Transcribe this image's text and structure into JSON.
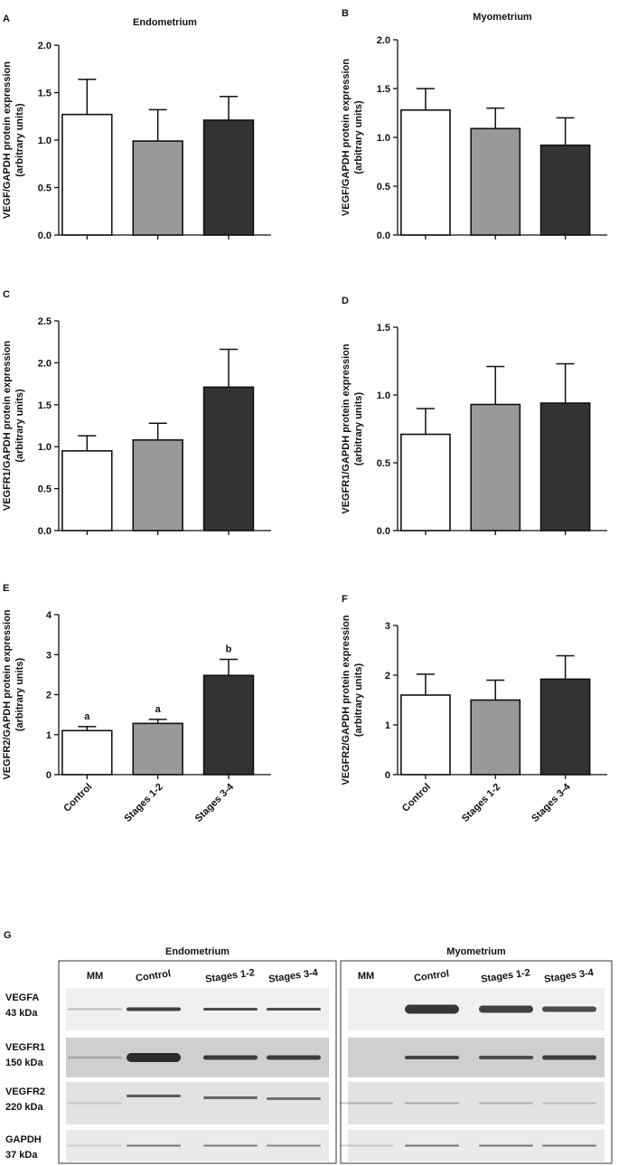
{
  "chart_data": [
    {
      "type": "bar",
      "panel": "A",
      "title": "Endometrium",
      "ylabel": [
        "VEGF/GAPDH protein expression",
        "(arbitrary units)"
      ],
      "categories": [
        null,
        null,
        null
      ],
      "values": [
        1.27,
        0.99,
        1.21
      ],
      "errors": [
        0.37,
        0.33,
        0.25
      ],
      "colors": [
        "#ffffff",
        "#999999",
        "#333333"
      ],
      "ylim": [
        0,
        2
      ],
      "yticks": [
        {
          "value": 0,
          "label": "0.0"
        },
        0.5,
        {
          "value": 1,
          "label": "1.0"
        },
        1.5,
        {
          "value": 2,
          "label": "2.0"
        }
      ]
    },
    {
      "type": "bar",
      "panel": "B",
      "title": "Myometrium",
      "ylabel": [
        "VEGF/GAPDH protein expression",
        "(arbitrary units)"
      ],
      "categories": [
        null,
        null,
        null
      ],
      "values": [
        1.28,
        1.09,
        0.92
      ],
      "errors": [
        0.22,
        0.21,
        0.28
      ],
      "colors": [
        "#ffffff",
        "#999999",
        "#333333"
      ],
      "ylim": [
        0,
        2
      ],
      "yticks": [
        {
          "value": 0,
          "label": "0.0"
        },
        0.5,
        {
          "value": 1,
          "label": "1.0"
        },
        1.5,
        {
          "value": 2,
          "label": "2.0"
        }
      ]
    },
    {
      "type": "bar",
      "panel": "C",
      "ylabel": [
        "VEGFR1/GAPDH protein expression",
        "(arbitrary units)"
      ],
      "categories": [
        null,
        null,
        null
      ],
      "values": [
        0.95,
        1.08,
        1.71
      ],
      "errors": [
        0.18,
        0.2,
        0.45
      ],
      "colors": [
        "#ffffff",
        "#999999",
        "#333333"
      ],
      "ylim": [
        0,
        2.5
      ],
      "yticks": [
        {
          "value": 0,
          "label": "0.0"
        },
        0.5,
        {
          "value": 1,
          "label": "1.0"
        },
        1.5,
        {
          "value": 2,
          "label": "2.0"
        },
        2.5
      ]
    },
    {
      "type": "bar",
      "panel": "D",
      "ylabel": [
        "VEGFR1/GAPDH protein expression",
        "(arbitrary units)"
      ],
      "categories": [
        null,
        null,
        null
      ],
      "values": [
        0.71,
        0.93,
        0.94
      ],
      "errors": [
        0.19,
        0.28,
        0.29
      ],
      "colors": [
        "#ffffff",
        "#999999",
        "#333333"
      ],
      "ylim": [
        0,
        1.5
      ],
      "yticks": [
        {
          "value": 0,
          "label": "0.0"
        },
        0.5,
        {
          "value": 1,
          "label": "1.0"
        },
        1.5
      ]
    },
    {
      "type": "bar",
      "panel": "E",
      "ylabel": [
        "VEGFR2/GAPDH protein expression",
        "(arbitrary units)"
      ],
      "categories": [
        "Control",
        "Stages 1-2",
        "Stages 3-4"
      ],
      "values": [
        1.1,
        1.28,
        2.48
      ],
      "errors": [
        0.1,
        0.1,
        0.4
      ],
      "annotations": [
        "a",
        "a",
        "b"
      ],
      "colors": [
        "#ffffff",
        "#999999",
        "#333333"
      ],
      "ylim": [
        0,
        4
      ],
      "yticks": [
        0,
        1,
        2,
        3,
        4
      ]
    },
    {
      "type": "bar",
      "panel": "F",
      "ylabel": [
        "VEGFR2/GAPDH protein expression",
        "(arbitrary units)"
      ],
      "categories": [
        "Control",
        "Stages 1-2",
        "Stages 3-4"
      ],
      "values": [
        1.6,
        1.5,
        1.92
      ],
      "errors": [
        0.42,
        0.4,
        0.47
      ],
      "colors": [
        "#ffffff",
        "#999999",
        "#333333"
      ],
      "ylim": [
        0,
        3
      ],
      "yticks": [
        0,
        1,
        2,
        3
      ]
    }
  ],
  "blot": {
    "panel": "G",
    "regions": [
      {
        "title": "Endometrium",
        "lanes": [
          "MM",
          "Control",
          "Stages 1-2",
          "Stages 3-4"
        ]
      },
      {
        "title": "Myometrium",
        "lanes": [
          "MM",
          "Control",
          "Stages 1-2",
          "Stages 3-4"
        ]
      }
    ],
    "rows": [
      {
        "name": "VEGFA",
        "kda": "43 kDa"
      },
      {
        "name": "VEGFR1",
        "kda": "150 kDa"
      },
      {
        "name": "VEGFR2",
        "kda": "220 kDa"
      },
      {
        "name": "GAPDH",
        "kda": "37 kDa"
      }
    ]
  }
}
